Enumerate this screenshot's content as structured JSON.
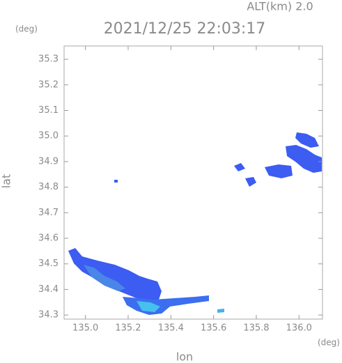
{
  "chart_data": {
    "type": "map",
    "title": "2021/12/25 22:03:17",
    "subtitle": "ALT(km) 2.0",
    "x_label": "lon",
    "y_label": "lat",
    "x_unit": "(deg)",
    "y_unit": "(deg)",
    "xlim": [
      134.9,
      136.11
    ],
    "ylim": [
      34.284,
      35.352
    ],
    "xticks": [
      {
        "value": 135.0,
        "label": "135.0"
      },
      135.2,
      135.4,
      135.6,
      135.8,
      {
        "value": 136.0,
        "label": "136.0"
      }
    ],
    "yticks": [
      34.3,
      34.4,
      34.5,
      34.6,
      34.7,
      34.8,
      34.9,
      {
        "value": 35.0,
        "label": "35.0"
      },
      35.1,
      35.2,
      35.3
    ],
    "grid": false
  }
}
